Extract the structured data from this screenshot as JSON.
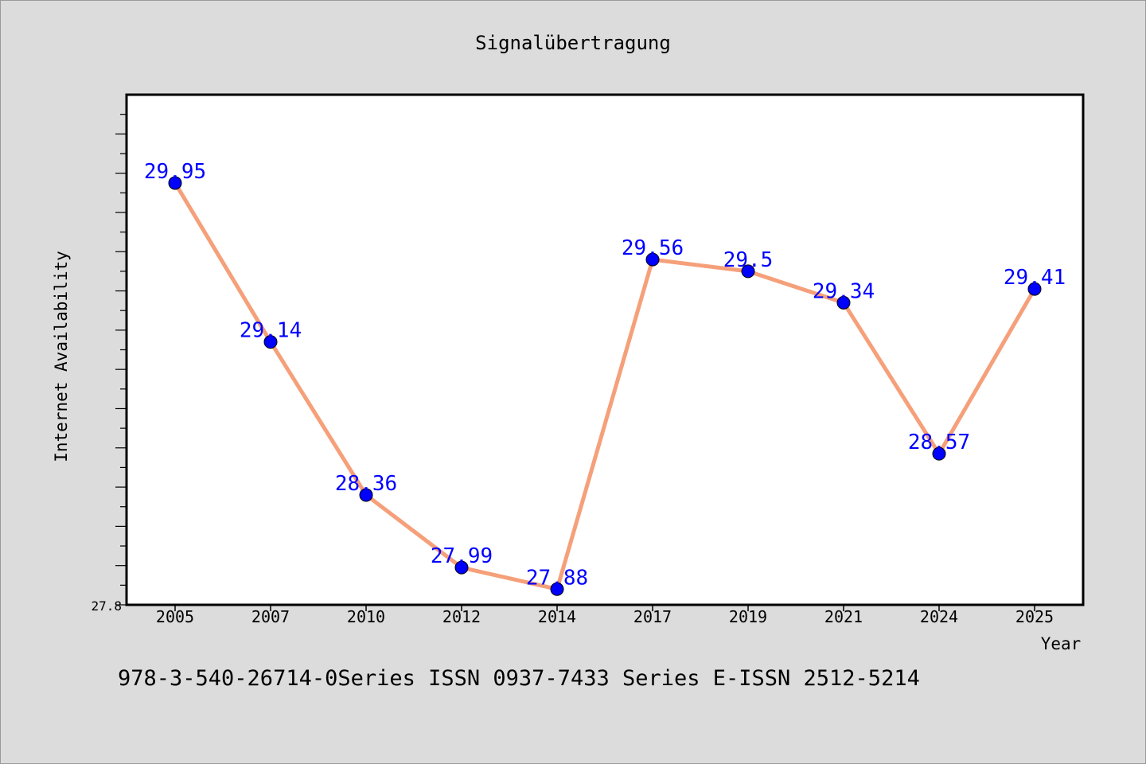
{
  "chart_data": {
    "type": "line",
    "title": "Signalübertragung",
    "xlabel": "Year",
    "ylabel": "Internet Availability",
    "categories": [
      "2005",
      "2007",
      "2010",
      "2012",
      "2014",
      "2017",
      "2019",
      "2021",
      "2024",
      "2025"
    ],
    "series": [
      {
        "values": [
          29.95,
          29.14,
          28.36,
          27.99,
          27.88,
          29.56,
          29.5,
          29.34,
          28.57,
          29.41
        ],
        "labels": [
          "29.95",
          "29.14",
          "28.36",
          "27.99",
          "27.88",
          "29.56",
          "29.5",
          "29.34",
          "28.57",
          "29.41"
        ],
        "line_color": "#f5a07a",
        "marker_color": "#0000ff"
      }
    ],
    "ylim": [
      27.8,
      30.4
    ],
    "y_tick_labels": [
      "27.8"
    ],
    "grid": false,
    "legend": "none"
  },
  "footer": {
    "text": "978-3-540-26714-0Series ISSN 0937-7433 Series E-ISSN 2512-5214"
  }
}
